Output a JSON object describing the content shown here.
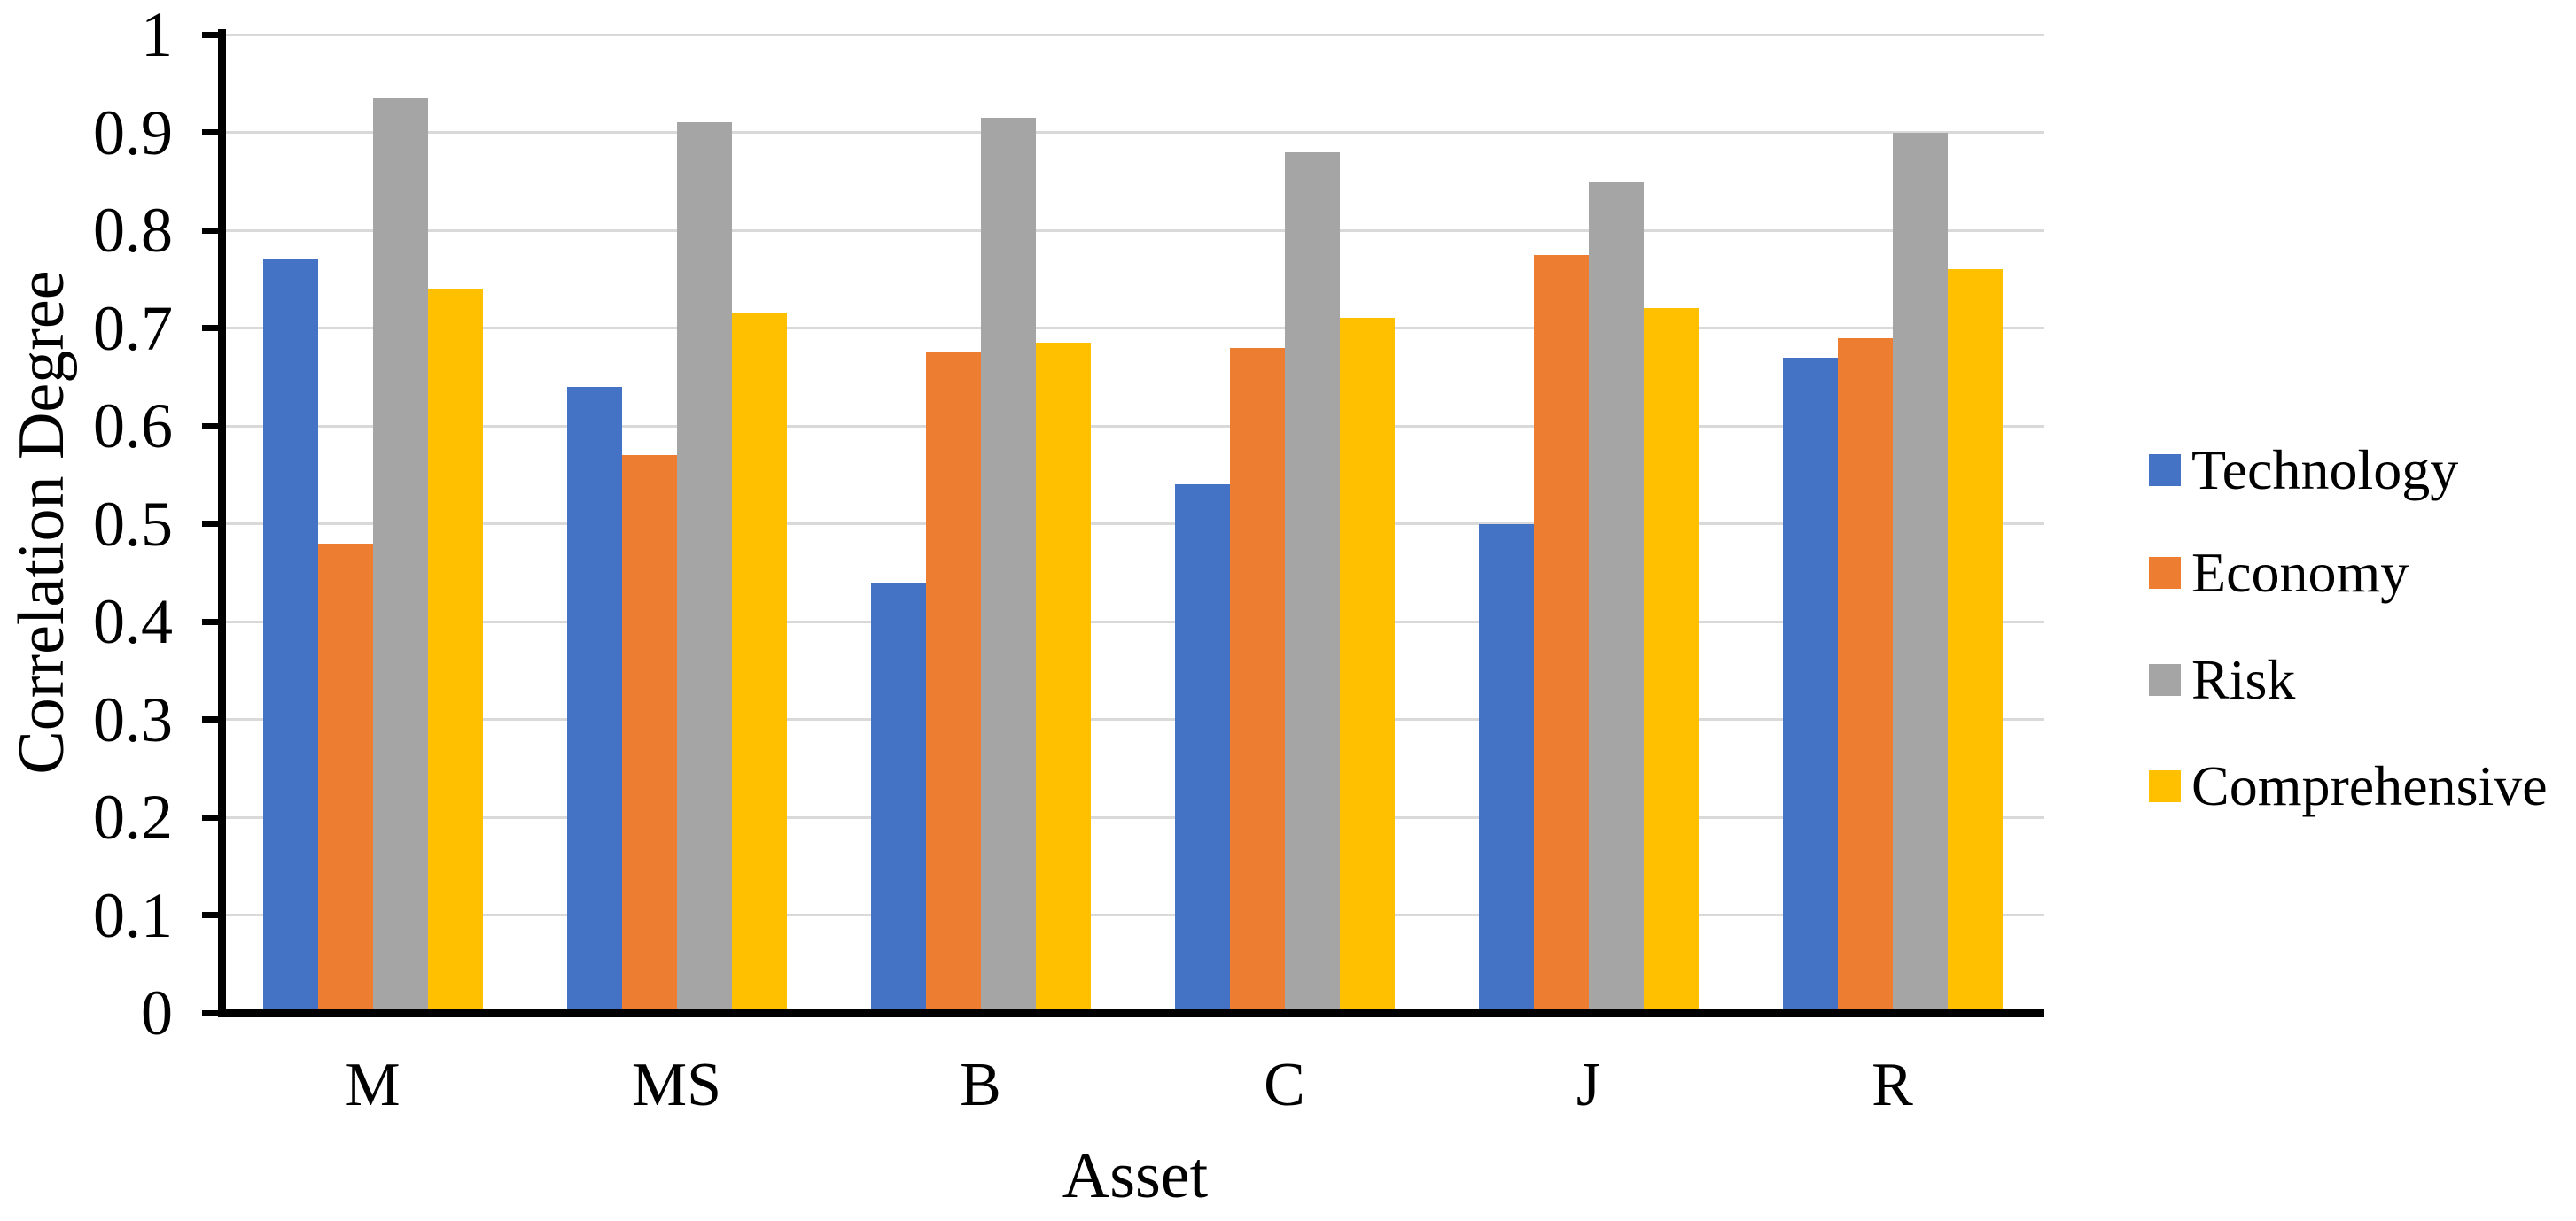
{
  "chart_data": {
    "type": "bar",
    "title": "",
    "xlabel": "Asset",
    "ylabel": "Correlation Degree",
    "categories": [
      "M",
      "MS",
      "B",
      "C",
      "J",
      "R"
    ],
    "series": [
      {
        "name": "Technology",
        "color": "#4472C4",
        "values": [
          0.77,
          0.64,
          0.44,
          0.54,
          0.5,
          0.67
        ]
      },
      {
        "name": "Economy",
        "color": "#ED7D31",
        "values": [
          0.48,
          0.57,
          0.675,
          0.68,
          0.775,
          0.69
        ]
      },
      {
        "name": "Risk",
        "color": "#A5A5A5",
        "values": [
          0.935,
          0.91,
          0.915,
          0.88,
          0.85,
          0.9
        ]
      },
      {
        "name": "Comprehensive",
        "color": "#FFC000",
        "values": [
          0.74,
          0.715,
          0.685,
          0.71,
          0.72,
          0.76
        ]
      }
    ],
    "ylim": [
      0,
      1
    ],
    "ytick_step": 0.1,
    "ytick_labels": [
      "0",
      "0.1",
      "0.2",
      "0.3",
      "0.4",
      "0.5",
      "0.6",
      "0.7",
      "0.8",
      "0.9",
      "1"
    ],
    "grid": true,
    "gridline_color": "#D9D9D9",
    "axis_color": "#000000",
    "legend_position": "right",
    "legend_labels": [
      "Technology",
      "Economy",
      "Risk",
      "Comprehensive"
    ]
  }
}
